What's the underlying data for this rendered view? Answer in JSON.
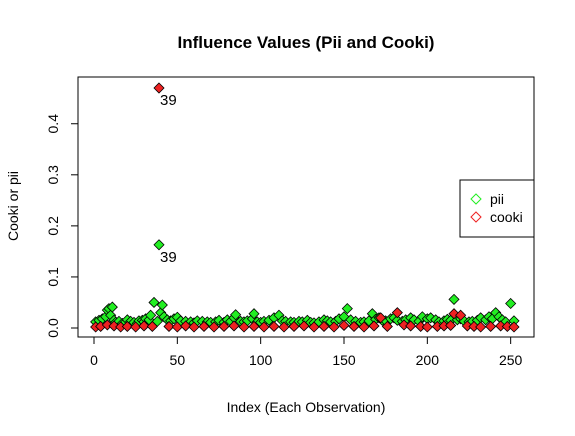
{
  "chart_data": {
    "type": "scatter",
    "title": "Influence Values (Pii and Cooki)",
    "xlabel": "Index (Each Observation)",
    "ylabel": "Cooki or pii",
    "xlim": [
      0,
      252
    ],
    "ylim": [
      0,
      0.47
    ],
    "x_ticks": [
      0,
      50,
      100,
      150,
      200,
      250
    ],
    "x_tick_labels": [
      "0",
      "50",
      "100",
      "150",
      "200",
      "250"
    ],
    "y_ticks": [
      0,
      0.1,
      0.2,
      0.3,
      0.4
    ],
    "y_tick_labels": [
      "0.0",
      "0.1",
      "0.2",
      "0.3",
      "0.4"
    ],
    "legend": {
      "position": "right",
      "entries": [
        "pii",
        "cooki"
      ]
    },
    "colors": {
      "pii": "#22ee22",
      "cooki": "#ee2222"
    },
    "series": [
      {
        "name": "pii",
        "color": "#22ee22",
        "points": [
          [
            1,
            0.012
          ],
          [
            3,
            0.015
          ],
          [
            5,
            0.018
          ],
          [
            7,
            0.022
          ],
          [
            8,
            0.035
          ],
          [
            9,
            0.038
          ],
          [
            10,
            0.025
          ],
          [
            11,
            0.041
          ],
          [
            12,
            0.015
          ],
          [
            13,
            0.011
          ],
          [
            15,
            0.013
          ],
          [
            17,
            0.009
          ],
          [
            19,
            0.012
          ],
          [
            20,
            0.016
          ],
          [
            22,
            0.013
          ],
          [
            24,
            0.011
          ],
          [
            26,
            0.009
          ],
          [
            27,
            0.014
          ],
          [
            29,
            0.015
          ],
          [
            30,
            0.012
          ],
          [
            31,
            0.018
          ],
          [
            33,
            0.016
          ],
          [
            34,
            0.025
          ],
          [
            36,
            0.05
          ],
          [
            38,
            0.013
          ],
          [
            39,
            0.163
          ],
          [
            40,
            0.03
          ],
          [
            41,
            0.045
          ],
          [
            42,
            0.022
          ],
          [
            44,
            0.016
          ],
          [
            46,
            0.014
          ],
          [
            48,
            0.018
          ],
          [
            50,
            0.021
          ],
          [
            52,
            0.014
          ],
          [
            55,
            0.013
          ],
          [
            58,
            0.012
          ],
          [
            60,
            0.01
          ],
          [
            62,
            0.014
          ],
          [
            65,
            0.013
          ],
          [
            68,
            0.012
          ],
          [
            70,
            0.011
          ],
          [
            73,
            0.012
          ],
          [
            75,
            0.015
          ],
          [
            78,
            0.011
          ],
          [
            80,
            0.016
          ],
          [
            82,
            0.013
          ],
          [
            84,
            0.02
          ],
          [
            85,
            0.026
          ],
          [
            88,
            0.013
          ],
          [
            90,
            0.012
          ],
          [
            92,
            0.014
          ],
          [
            95,
            0.018
          ],
          [
            96,
            0.028
          ],
          [
            98,
            0.012
          ],
          [
            100,
            0.011
          ],
          [
            102,
            0.013
          ],
          [
            105,
            0.015
          ],
          [
            108,
            0.02
          ],
          [
            111,
            0.025
          ],
          [
            113,
            0.014
          ],
          [
            115,
            0.013
          ],
          [
            118,
            0.012
          ],
          [
            120,
            0.011
          ],
          [
            123,
            0.013
          ],
          [
            125,
            0.012
          ],
          [
            128,
            0.015
          ],
          [
            130,
            0.011
          ],
          [
            132,
            0.01
          ],
          [
            135,
            0.012
          ],
          [
            138,
            0.016
          ],
          [
            140,
            0.014
          ],
          [
            142,
            0.012
          ],
          [
            145,
            0.013
          ],
          [
            147,
            0.018
          ],
          [
            150,
            0.022
          ],
          [
            152,
            0.038
          ],
          [
            154,
            0.016
          ],
          [
            157,
            0.013
          ],
          [
            160,
            0.011
          ],
          [
            162,
            0.012
          ],
          [
            165,
            0.014
          ],
          [
            167,
            0.028
          ],
          [
            169,
            0.017
          ],
          [
            171,
            0.02
          ],
          [
            173,
            0.015
          ],
          [
            175,
            0.014
          ],
          [
            178,
            0.018
          ],
          [
            180,
            0.02
          ],
          [
            182,
            0.015
          ],
          [
            185,
            0.013
          ],
          [
            187,
            0.016
          ],
          [
            190,
            0.02
          ],
          [
            192,
            0.016
          ],
          [
            195,
            0.013
          ],
          [
            197,
            0.022
          ],
          [
            200,
            0.018
          ],
          [
            202,
            0.02
          ],
          [
            205,
            0.016
          ],
          [
            207,
            0.012
          ],
          [
            210,
            0.014
          ],
          [
            212,
            0.017
          ],
          [
            214,
            0.015
          ],
          [
            216,
            0.056
          ],
          [
            218,
            0.016
          ],
          [
            220,
            0.018
          ],
          [
            222,
            0.014
          ],
          [
            225,
            0.012
          ],
          [
            227,
            0.013
          ],
          [
            230,
            0.015
          ],
          [
            232,
            0.02
          ],
          [
            235,
            0.016
          ],
          [
            237,
            0.022
          ],
          [
            239,
            0.018
          ],
          [
            241,
            0.03
          ],
          [
            243,
            0.022
          ],
          [
            245,
            0.016
          ],
          [
            247,
            0.012
          ],
          [
            250,
            0.048
          ],
          [
            252,
            0.014
          ]
        ]
      },
      {
        "name": "cooki",
        "color": "#ee2222",
        "points": [
          [
            1,
            0.002
          ],
          [
            4,
            0.003
          ],
          [
            8,
            0.006
          ],
          [
            12,
            0.004
          ],
          [
            16,
            0.002
          ],
          [
            20,
            0.003
          ],
          [
            25,
            0.002
          ],
          [
            30,
            0.004
          ],
          [
            35,
            0.003
          ],
          [
            39,
            0.47
          ],
          [
            45,
            0.003
          ],
          [
            50,
            0.002
          ],
          [
            55,
            0.004
          ],
          [
            60,
            0.002
          ],
          [
            66,
            0.003
          ],
          [
            72,
            0.002
          ],
          [
            78,
            0.003
          ],
          [
            84,
            0.004
          ],
          [
            90,
            0.002
          ],
          [
            96,
            0.003
          ],
          [
            102,
            0.002
          ],
          [
            108,
            0.003
          ],
          [
            114,
            0.002
          ],
          [
            120,
            0.003
          ],
          [
            126,
            0.004
          ],
          [
            132,
            0.002
          ],
          [
            138,
            0.003
          ],
          [
            144,
            0.002
          ],
          [
            150,
            0.005
          ],
          [
            156,
            0.003
          ],
          [
            162,
            0.002
          ],
          [
            168,
            0.004
          ],
          [
            172,
            0.02
          ],
          [
            176,
            0.003
          ],
          [
            182,
            0.03
          ],
          [
            186,
            0.006
          ],
          [
            190,
            0.004
          ],
          [
            196,
            0.003
          ],
          [
            200,
            0.002
          ],
          [
            206,
            0.003
          ],
          [
            210,
            0.004
          ],
          [
            214,
            0.005
          ],
          [
            216,
            0.028
          ],
          [
            220,
            0.025
          ],
          [
            224,
            0.004
          ],
          [
            228,
            0.003
          ],
          [
            232,
            0.002
          ],
          [
            238,
            0.003
          ],
          [
            244,
            0.004
          ],
          [
            248,
            0.003
          ],
          [
            252,
            0.002
          ]
        ]
      }
    ],
    "annotations": [
      {
        "text": "39",
        "x": 39,
        "y": 0.47
      },
      {
        "text": "39",
        "x": 39,
        "y": 0.163
      }
    ]
  }
}
